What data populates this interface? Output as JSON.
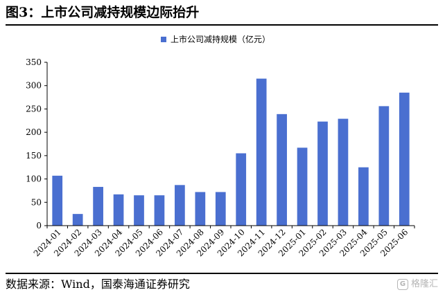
{
  "figure": {
    "title": "图3：上市公司减持规模边际抬升",
    "source": "数据来源：Wind，国泰海通证券研究",
    "watermark": "格隆汇"
  },
  "chart_data": {
    "type": "bar",
    "categories": [
      "2024-01",
      "2024-02",
      "2024-03",
      "2024-04",
      "2024-05",
      "2024-06",
      "2024-07",
      "2024-08",
      "2024-09",
      "2024-10",
      "2024-11",
      "2024-12",
      "2025-01",
      "2025-02",
      "2025-03",
      "2025-04",
      "2025-05",
      "2025-06"
    ],
    "series": [
      {
        "name": "上市公司减持规模（亿元）",
        "color": "#4a6fd0",
        "values": [
          107,
          25,
          83,
          67,
          65,
          65,
          87,
          72,
          72,
          155,
          315,
          239,
          167,
          223,
          229,
          125,
          256,
          285
        ]
      }
    ],
    "ylim": [
      0,
      350
    ],
    "yticks": [
      0,
      50,
      100,
      150,
      200,
      250,
      300,
      350
    ],
    "grid": false,
    "legend": "top-center"
  }
}
